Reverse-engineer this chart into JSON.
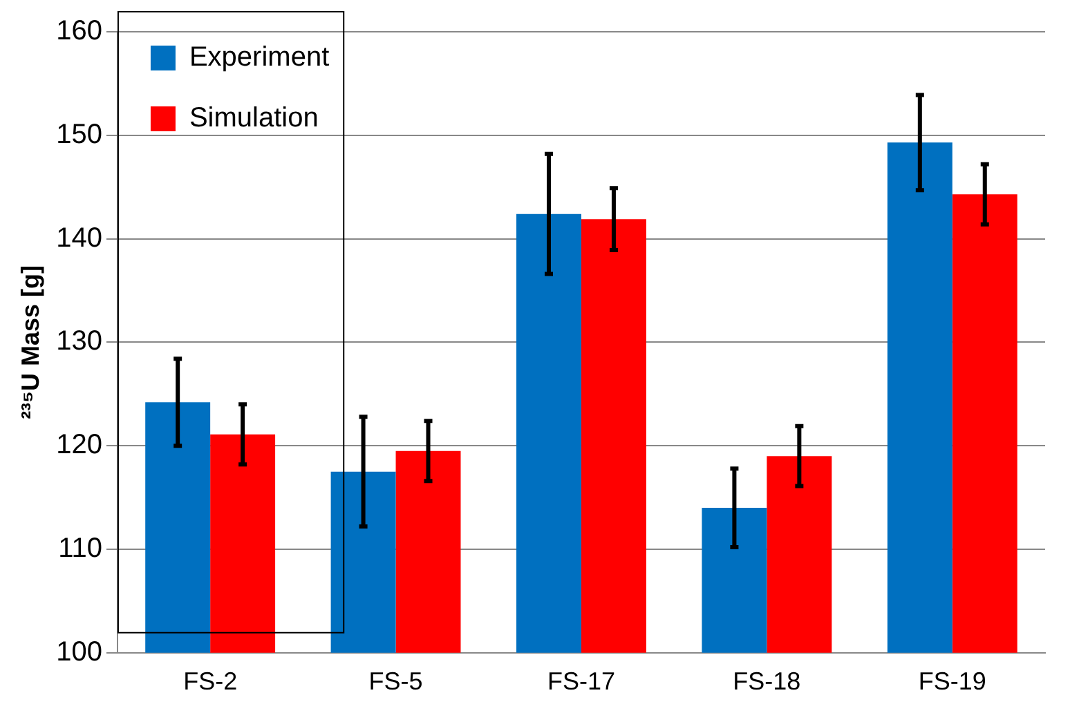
{
  "chart_data": {
    "type": "bar",
    "ylabel": "²³⁵U Mass [g]",
    "categories": [
      "FS-2",
      "FS-5",
      "FS-17",
      "FS-18",
      "FS-19"
    ],
    "series": [
      {
        "name": "Experiment",
        "color": "#0070c0",
        "values": [
          124.2,
          117.5,
          142.4,
          114.0,
          149.3
        ],
        "errors": [
          4.2,
          5.3,
          5.8,
          3.8,
          4.6
        ]
      },
      {
        "name": "Simulation",
        "color": "#ff0000",
        "values": [
          121.1,
          119.5,
          141.9,
          119.0,
          144.3
        ],
        "errors": [
          2.9,
          2.9,
          3.0,
          2.9,
          2.9
        ]
      }
    ],
    "ylim": [
      100,
      160
    ],
    "yticks": [
      100,
      110,
      120,
      130,
      140,
      150,
      160
    ],
    "grid": "y",
    "legend": "top left"
  }
}
